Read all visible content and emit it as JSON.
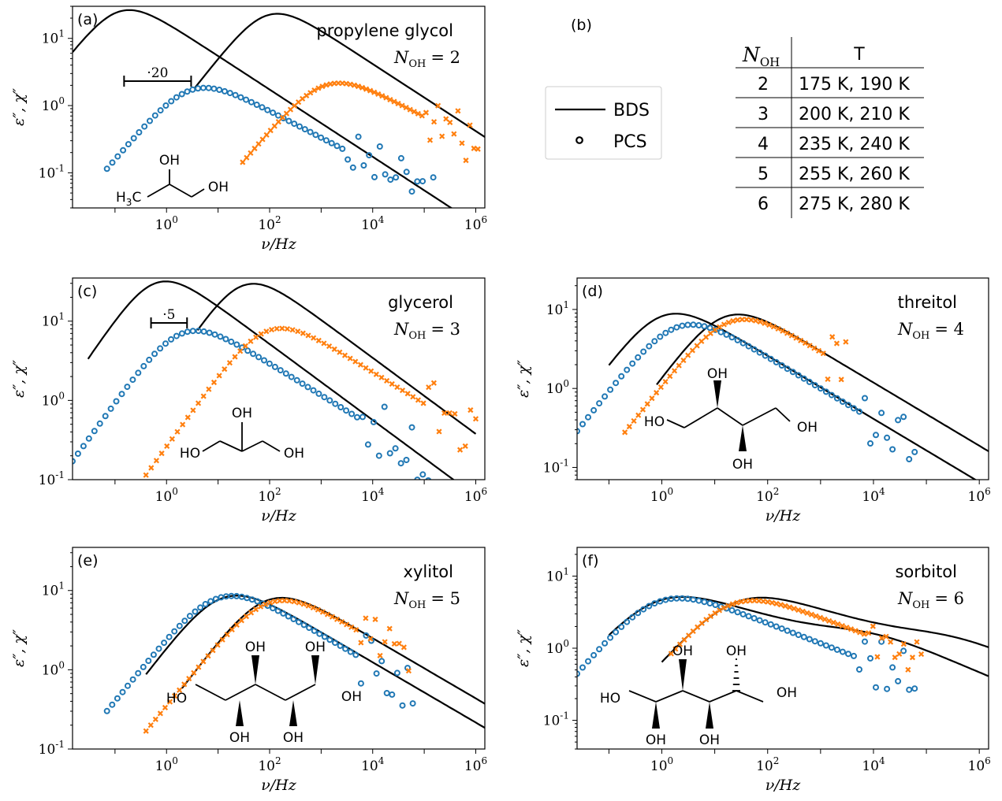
{
  "legend": {
    "bds_label": "BDS",
    "pcs_label": "PCS"
  },
  "axis": {
    "xlabel": "ν/Hz",
    "ylabel": "ε″, χ″"
  },
  "table": {
    "label": "(b)",
    "col_noh": "N",
    "col_noh_sub": "OH",
    "col_t": "T",
    "rows": [
      {
        "n": "2",
        "t": "175 K, 190 K"
      },
      {
        "n": "3",
        "t": "200 K, 210 K"
      },
      {
        "n": "4",
        "t": "235 K, 240 K"
      },
      {
        "n": "5",
        "t": "255 K, 260 K"
      },
      {
        "n": "6",
        "t": "275 K, 280 K"
      }
    ]
  },
  "colors": {
    "bds": "#000000",
    "pcs_low": "#1f77b4",
    "pcs_high": "#ff7f0e"
  },
  "chart_data": [
    {
      "panel": "(a)",
      "type": "line",
      "title": "propylene glycol",
      "noh": "N",
      "noh_sub": "OH",
      "noh_val": "= 2",
      "shift_label": "·20",
      "xscale": "log",
      "yscale": "log",
      "xlim": [
        0.015,
        1500000.0
      ],
      "ylim": [
        0.03,
        30
      ],
      "yticks": [
        0.1,
        1,
        10
      ],
      "xticks": [
        1,
        100,
        10000,
        1000000
      ],
      "molecule": {
        "oh_top": "OH",
        "oh_right": "OH",
        "left": "H",
        "left_sub": "3",
        "left_end": "C"
      },
      "bds": [
        {
          "name": "low",
          "peak_x": 0.12,
          "peak_y": 25,
          "a": 0.98,
          "b": 0.5,
          "x_start": 0.015,
          "x_end": 1500000.0
        },
        {
          "name": "high",
          "peak_x": 90,
          "peak_y": 22,
          "a": 0.98,
          "b": 0.5,
          "x_start": 3.5,
          "x_end": 1500000.0
        }
      ],
      "pcs": [
        {
          "name": "low",
          "marker": "o",
          "peak_x": 3,
          "peak_y": 1.7,
          "a": 0.9,
          "b": 0.4,
          "x_start": 0.07,
          "x_end": 150000.0,
          "n": 62,
          "noise_from": 3000
        },
        {
          "name": "high",
          "marker": "x",
          "peak_x": 1200,
          "peak_y": 2.0,
          "a": 0.9,
          "b": 0.4,
          "x_start": 30,
          "x_end": 1100000.0,
          "n": 60,
          "noise_from": 100000.0
        }
      ]
    },
    {
      "panel": "(c)",
      "type": "line",
      "title": "glycerol",
      "noh": "N",
      "noh_sub": "OH",
      "noh_val": "= 3",
      "shift_label": "·5",
      "xscale": "log",
      "yscale": "log",
      "xlim": [
        0.015,
        1500000.0
      ],
      "ylim": [
        0.1,
        35
      ],
      "yticks": [
        0.1,
        1,
        10
      ],
      "xticks": [
        1,
        100,
        10000,
        1000000
      ],
      "molecule": {
        "oh_top": "OH",
        "oh_left": "HO",
        "oh_right": "OH"
      },
      "bds": [
        {
          "name": "low",
          "peak_x": 0.6,
          "peak_y": 30,
          "a": 0.96,
          "b": 0.48,
          "x_start": 0.03,
          "x_end": 1000000.0
        },
        {
          "name": "high",
          "peak_x": 30,
          "peak_y": 28,
          "a": 0.96,
          "b": 0.48,
          "x_start": 4,
          "x_end": 1000000.0
        }
      ],
      "pcs": [
        {
          "name": "low",
          "marker": "o",
          "peak_x": 2,
          "peak_y": 7,
          "a": 0.9,
          "b": 0.4,
          "x_start": 0.015,
          "x_end": 120000.0,
          "n": 66,
          "noise_from": 5000
        },
        {
          "name": "high",
          "marker": "x",
          "peak_x": 90,
          "peak_y": 7.5,
          "a": 0.9,
          "b": 0.4,
          "x_start": 0.25,
          "x_end": 1000000.0,
          "n": 66,
          "noise_from": 100000.0
        }
      ]
    },
    {
      "panel": "(d)",
      "type": "line",
      "title": "threitol",
      "noh": "N",
      "noh_sub": "OH",
      "noh_val": "= 4",
      "xscale": "log",
      "yscale": "log",
      "xlim": [
        0.025,
        1500000.0
      ],
      "ylim": [
        0.07,
        25
      ],
      "yticks": [
        0.1,
        1,
        10
      ],
      "xticks": [
        1,
        100,
        10000,
        1000000
      ],
      "molecule": {
        "oh_top": "OH",
        "oh_left": "HO",
        "oh_right": "OH",
        "oh_bottom": "OH"
      },
      "bds": [
        {
          "name": "low",
          "peak_x": 1,
          "peak_y": 8.2,
          "a": 0.9,
          "b": 0.4,
          "x_start": 0.1,
          "x_end": 1500000.0
        },
        {
          "name": "high",
          "peak_x": 15,
          "peak_y": 8,
          "a": 0.9,
          "b": 0.4,
          "x_start": 0.8,
          "x_end": 1500000.0
        }
      ],
      "pcs": [
        {
          "name": "low",
          "marker": "o",
          "peak_x": 2,
          "peak_y": 6,
          "a": 0.85,
          "b": 0.4,
          "x_start": 0.025,
          "x_end": 60000.0,
          "n": 62,
          "noise_from": 6000
        },
        {
          "name": "high",
          "marker": "x",
          "peak_x": 20,
          "peak_y": 7,
          "a": 0.85,
          "b": 0.4,
          "x_start": 0.2,
          "x_end": 3000,
          "n": 50,
          "noise_from": 1200
        }
      ]
    },
    {
      "panel": "(e)",
      "type": "line",
      "title": "xylitol",
      "noh": "N",
      "noh_sub": "OH",
      "noh_val": "= 5",
      "xscale": "log",
      "yscale": "log",
      "xlim": [
        0.015,
        1500000.0
      ],
      "ylim": [
        0.1,
        35
      ],
      "yticks": [
        0.1,
        1,
        10
      ],
      "xticks": [
        1,
        100,
        10000,
        1000000
      ],
      "molecule": {
        "oh_top1": "OH",
        "oh_top2": "OH",
        "oh_left": "HO",
        "oh_right": "OH",
        "oh_bottom1": "OH",
        "oh_bottom2": "OH"
      },
      "bds": [
        {
          "name": "low",
          "peak_x": 12,
          "peak_y": 8,
          "a": 0.85,
          "b": 0.38,
          "x_start": 0.4,
          "x_end": 1500000.0
        },
        {
          "name": "high",
          "peak_x": 90,
          "peak_y": 7.5,
          "a": 0.85,
          "b": 0.38,
          "x_start": 2,
          "x_end": 1500000.0
        }
      ],
      "pcs": [
        {
          "name": "low",
          "marker": "o",
          "peak_x": 10,
          "peak_y": 8,
          "a": 0.8,
          "b": 0.38,
          "x_start": 0.07,
          "x_end": 60000.0,
          "n": 60,
          "noise_from": 5000
        },
        {
          "name": "high",
          "marker": "x",
          "peak_x": 100,
          "peak_y": 7,
          "a": 0.8,
          "b": 0.38,
          "x_start": 0.4,
          "x_end": 50000.0,
          "n": 56,
          "noise_from": 5000
        }
      ]
    },
    {
      "panel": "(f)",
      "type": "line",
      "title": "sorbitol",
      "noh": "N",
      "noh_sub": "OH",
      "noh_val": "= 6",
      "xscale": "log",
      "yscale": "log",
      "xlim": [
        0.025,
        1500000.0
      ],
      "ylim": [
        0.04,
        25
      ],
      "yticks": [
        0.1,
        1,
        10
      ],
      "xticks": [
        1,
        100,
        10000,
        1000000
      ],
      "molecule": {
        "oh_top1": "OH",
        "oh_top2": "OH",
        "oh_left": "HO",
        "oh_right": "OH",
        "oh_bottom1": "OH",
        "oh_bottom2": "OH"
      },
      "bds": [
        {
          "name": "low",
          "peak_x": 0.8,
          "peak_y": 4.4,
          "a": 0.8,
          "b": 0.25,
          "x_start": 0.1,
          "x_end": 1500000.0,
          "shoulder": 0.7
        },
        {
          "name": "high",
          "peak_x": 25,
          "peak_y": 4.3,
          "a": 0.8,
          "b": 0.25,
          "x_start": 1,
          "x_end": 1500000.0,
          "shoulder": 0.6
        }
      ],
      "pcs": [
        {
          "name": "low",
          "marker": "o",
          "peak_x": 0.8,
          "peak_y": 4.3,
          "a": 0.85,
          "b": 0.28,
          "x_start": 0.025,
          "x_end": 60000.0,
          "n": 62,
          "noise_from": 5000
        },
        {
          "name": "high",
          "marker": "x",
          "peak_x": 20,
          "peak_y": 4,
          "a": 0.85,
          "b": 0.28,
          "x_start": 1.5,
          "x_end": 80000.0,
          "n": 58,
          "noise_from": 8000
        }
      ]
    }
  ]
}
